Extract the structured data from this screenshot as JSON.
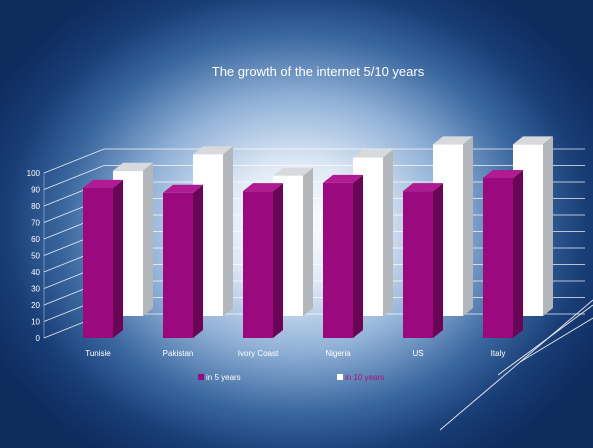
{
  "colors": {
    "series_5": "#9a0a7e",
    "series_5_side": "#6a0556",
    "series_5_top": "#b01a92",
    "series_10": "#ffffff",
    "series_10_side": "#b3b6bb",
    "series_10_top": "#d7d9dc",
    "legend_text_10": "#b0107f"
  },
  "chart_data": {
    "type": "bar",
    "title": "The growth of the internet 5/10 years",
    "categories": [
      "Tunisie",
      "Pakistan",
      "Ivory Coast",
      "Nigeria",
      "US",
      "Italy"
    ],
    "series": [
      {
        "name": "in 5 years",
        "values": [
          91,
          88,
          89,
          94,
          89,
          97
        ]
      },
      {
        "name": "in 10 years",
        "values": [
          88,
          98,
          85,
          96,
          104,
          104
        ]
      }
    ],
    "ylim": [
      0,
      100
    ],
    "yticks": [
      "0",
      "10",
      "20",
      "30",
      "40",
      "50",
      "60",
      "70",
      "80",
      "90",
      "100"
    ],
    "grid": true,
    "legend_position": "bottom"
  }
}
